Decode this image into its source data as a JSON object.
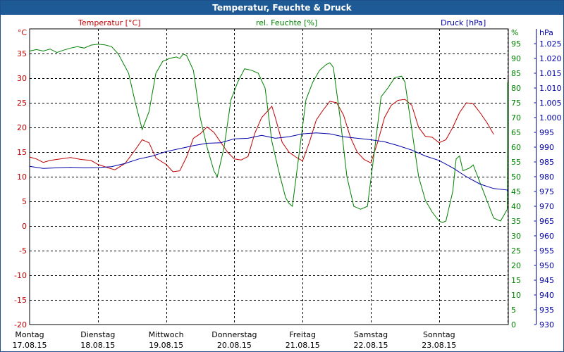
{
  "window": {
    "title": "Temperatur, Feuchte & Druck"
  },
  "colors": {
    "temperature": "#c00000",
    "humidity": "#008000",
    "pressure": "#0000a8",
    "titlebar": "#1e5a96"
  },
  "chart_data": {
    "type": "line",
    "title": "Temperatur, Feuchte & Druck",
    "grid": true,
    "legend": "top",
    "x_range": [
      "17.08.15 00:00",
      "24.08.15 00:00"
    ],
    "x_ticks": [
      {
        "day": "Montag",
        "date": "17.08.15"
      },
      {
        "day": "Dienstag",
        "date": "18.08.15"
      },
      {
        "day": "Mittwoch",
        "date": "19.08.15"
      },
      {
        "day": "Donnerstag",
        "date": "20.08.15"
      },
      {
        "day": "Freitag",
        "date": "21.08.15"
      },
      {
        "day": "Samstag",
        "date": "22.08.15"
      },
      {
        "day": "Sonntag",
        "date": "23.08.15"
      }
    ],
    "axes": {
      "temperature": {
        "label": "Temperatur [°C]",
        "unit": "°C",
        "min": -20,
        "max": 40,
        "ticks": [
          "35",
          "30",
          "25",
          "20",
          "15",
          "10",
          "5",
          "0",
          "-5",
          "-10",
          "-15",
          "-20"
        ]
      },
      "humidity": {
        "label": "rel. Feuchte [%]",
        "unit": "%",
        "min": 0,
        "max": 100,
        "ticks": [
          "95",
          "90",
          "85",
          "80",
          "75",
          "70",
          "65",
          "60",
          "55",
          "50",
          "45",
          "40",
          "35",
          "30",
          "25",
          "20",
          "15",
          "10",
          "5",
          "0"
        ]
      },
      "pressure": {
        "label": "Druck [hPa]",
        "unit": "hPa",
        "min": 930,
        "max": 1030,
        "ticks": [
          "1.025",
          "1.020",
          "1.015",
          "1.010",
          "1.005",
          "1.000",
          "995",
          "990",
          "985",
          "980",
          "975",
          "970",
          "965",
          "960",
          "955",
          "950",
          "945",
          "940",
          "935",
          "930"
        ]
      }
    },
    "series": [
      {
        "name": "Temperatur [°C]",
        "axis": "temperature",
        "points": [
          [
            0,
            14
          ],
          [
            0.1,
            13.6
          ],
          [
            0.2,
            12.9
          ],
          [
            0.3,
            13.3
          ],
          [
            0.45,
            13.6
          ],
          [
            0.6,
            13.9
          ],
          [
            0.75,
            13.5
          ],
          [
            0.9,
            13.3
          ],
          [
            1.0,
            12.5
          ],
          [
            1.15,
            11.8
          ],
          [
            1.25,
            11.4
          ],
          [
            1.4,
            12.7
          ],
          [
            1.55,
            15.5
          ],
          [
            1.65,
            17.5
          ],
          [
            1.75,
            16.9
          ],
          [
            1.85,
            13.8
          ],
          [
            2.0,
            12.5
          ],
          [
            2.1,
            11.0
          ],
          [
            2.2,
            11.2
          ],
          [
            2.3,
            14.0
          ],
          [
            2.4,
            17.8
          ],
          [
            2.5,
            18.7
          ],
          [
            2.6,
            20.1
          ],
          [
            2.7,
            19.0
          ],
          [
            2.8,
            17.0
          ],
          [
            2.9,
            15.0
          ],
          [
            3.0,
            13.6
          ],
          [
            3.1,
            13.4
          ],
          [
            3.2,
            14.1
          ],
          [
            3.3,
            18.8
          ],
          [
            3.4,
            22.0
          ],
          [
            3.5,
            23.5
          ],
          [
            3.55,
            24.3
          ],
          [
            3.6,
            22.0
          ],
          [
            3.7,
            17.0
          ],
          [
            3.8,
            15.0
          ],
          [
            3.9,
            14.0
          ],
          [
            4.0,
            13.2
          ],
          [
            4.1,
            17.0
          ],
          [
            4.2,
            21.5
          ],
          [
            4.3,
            23.5
          ],
          [
            4.4,
            25.3
          ],
          [
            4.5,
            25.0
          ],
          [
            4.6,
            22.5
          ],
          [
            4.7,
            18.0
          ],
          [
            4.8,
            15.0
          ],
          [
            4.9,
            13.5
          ],
          [
            5.0,
            12.8
          ],
          [
            5.1,
            17.0
          ],
          [
            5.2,
            22.0
          ],
          [
            5.3,
            24.5
          ],
          [
            5.4,
            25.5
          ],
          [
            5.5,
            25.7
          ],
          [
            5.6,
            24.5
          ],
          [
            5.7,
            20.0
          ],
          [
            5.8,
            18.2
          ],
          [
            5.9,
            18.0
          ],
          [
            6.0,
            16.9
          ],
          [
            6.1,
            17.5
          ],
          [
            6.2,
            20.0
          ],
          [
            6.3,
            23.0
          ],
          [
            6.4,
            25.0
          ],
          [
            6.5,
            24.8
          ],
          [
            6.6,
            23.0
          ],
          [
            6.7,
            21.0
          ],
          [
            6.8,
            18.6
          ]
        ]
      },
      {
        "name": "rel. Feuchte [%]",
        "axis": "humidity",
        "points": [
          [
            0,
            92.5
          ],
          [
            0.1,
            93.0
          ],
          [
            0.2,
            92.5
          ],
          [
            0.3,
            93.2
          ],
          [
            0.4,
            92.0
          ],
          [
            0.5,
            92.8
          ],
          [
            0.6,
            93.5
          ],
          [
            0.7,
            94.0
          ],
          [
            0.8,
            93.5
          ],
          [
            0.9,
            94.5
          ],
          [
            1.0,
            94.8
          ],
          [
            1.1,
            94.6
          ],
          [
            1.2,
            94.0
          ],
          [
            1.3,
            91.5
          ],
          [
            1.45,
            85.0
          ],
          [
            1.55,
            75.0
          ],
          [
            1.65,
            66.0
          ],
          [
            1.75,
            72.0
          ],
          [
            1.85,
            85.0
          ],
          [
            1.95,
            89.0
          ],
          [
            2.05,
            90.0
          ],
          [
            2.15,
            90.5
          ],
          [
            2.2,
            90.0
          ],
          [
            2.25,
            91.5
          ],
          [
            2.3,
            91.0
          ],
          [
            2.4,
            86.0
          ],
          [
            2.5,
            70.0
          ],
          [
            2.6,
            60.0
          ],
          [
            2.7,
            52.0
          ],
          [
            2.75,
            50.0
          ],
          [
            2.85,
            60.0
          ],
          [
            2.95,
            76.0
          ],
          [
            3.05,
            82.0
          ],
          [
            3.15,
            86.5
          ],
          [
            3.25,
            86.0
          ],
          [
            3.35,
            85.0
          ],
          [
            3.45,
            80.0
          ],
          [
            3.55,
            62.0
          ],
          [
            3.65,
            52.0
          ],
          [
            3.75,
            43.0
          ],
          [
            3.8,
            41.0
          ],
          [
            3.85,
            40.0
          ],
          [
            3.95,
            58.0
          ],
          [
            4.05,
            76.0
          ],
          [
            4.15,
            82.0
          ],
          [
            4.25,
            86.0
          ],
          [
            4.35,
            88.0
          ],
          [
            4.4,
            88.5
          ],
          [
            4.45,
            87.0
          ],
          [
            4.55,
            70.0
          ],
          [
            4.65,
            50.0
          ],
          [
            4.75,
            40.0
          ],
          [
            4.85,
            39.0
          ],
          [
            4.95,
            40.0
          ],
          [
            5.05,
            58.0
          ],
          [
            5.15,
            77.0
          ],
          [
            5.25,
            80.0
          ],
          [
            5.35,
            83.5
          ],
          [
            5.45,
            84.0
          ],
          [
            5.5,
            82.0
          ],
          [
            5.6,
            66.0
          ],
          [
            5.7,
            50.0
          ],
          [
            5.8,
            42.0
          ],
          [
            5.9,
            38.0
          ],
          [
            6.0,
            35.0
          ],
          [
            6.05,
            34.5
          ],
          [
            6.1,
            35.0
          ],
          [
            6.2,
            45.0
          ],
          [
            6.25,
            56.0
          ],
          [
            6.3,
            57.0
          ],
          [
            6.35,
            52.0
          ],
          [
            6.45,
            53.0
          ],
          [
            6.5,
            54.0
          ],
          [
            6.6,
            48.0
          ],
          [
            6.7,
            42.0
          ],
          [
            6.8,
            36.0
          ],
          [
            6.9,
            35.0
          ],
          [
            6.95,
            37.0
          ],
          [
            7.0,
            39.0
          ],
          [
            7.1,
            60.0
          ],
          [
            7.2,
            76.0
          ],
          [
            7.35,
            82.0
          ]
        ]
      },
      {
        "name": "Druck [hPa]",
        "axis": "pressure",
        "points": [
          [
            0,
            983.5
          ],
          [
            0.2,
            982.8
          ],
          [
            0.4,
            983.0
          ],
          [
            0.6,
            983.2
          ],
          [
            0.8,
            983.0
          ],
          [
            1.0,
            983.1
          ],
          [
            1.2,
            983.4
          ],
          [
            1.4,
            984.5
          ],
          [
            1.6,
            986.0
          ],
          [
            1.8,
            987.0
          ],
          [
            2.0,
            988.5
          ],
          [
            2.2,
            989.5
          ],
          [
            2.4,
            990.5
          ],
          [
            2.6,
            991.3
          ],
          [
            2.8,
            991.5
          ],
          [
            3.0,
            992.8
          ],
          [
            3.2,
            993.0
          ],
          [
            3.4,
            994.0
          ],
          [
            3.6,
            993.0
          ],
          [
            3.8,
            993.5
          ],
          [
            4.0,
            994.5
          ],
          [
            4.2,
            994.8
          ],
          [
            4.4,
            994.5
          ],
          [
            4.6,
            993.5
          ],
          [
            4.8,
            993.0
          ],
          [
            5.0,
            992.5
          ],
          [
            5.2,
            991.8
          ],
          [
            5.4,
            990.5
          ],
          [
            5.6,
            989.0
          ],
          [
            5.8,
            987.0
          ],
          [
            6.0,
            985.5
          ],
          [
            6.2,
            983.0
          ],
          [
            6.4,
            980.0
          ],
          [
            6.6,
            977.5
          ],
          [
            6.8,
            976.0
          ],
          [
            7.0,
            975.5
          ],
          [
            7.2,
            975.0
          ],
          [
            7.3,
            975.0
          ]
        ]
      }
    ]
  }
}
